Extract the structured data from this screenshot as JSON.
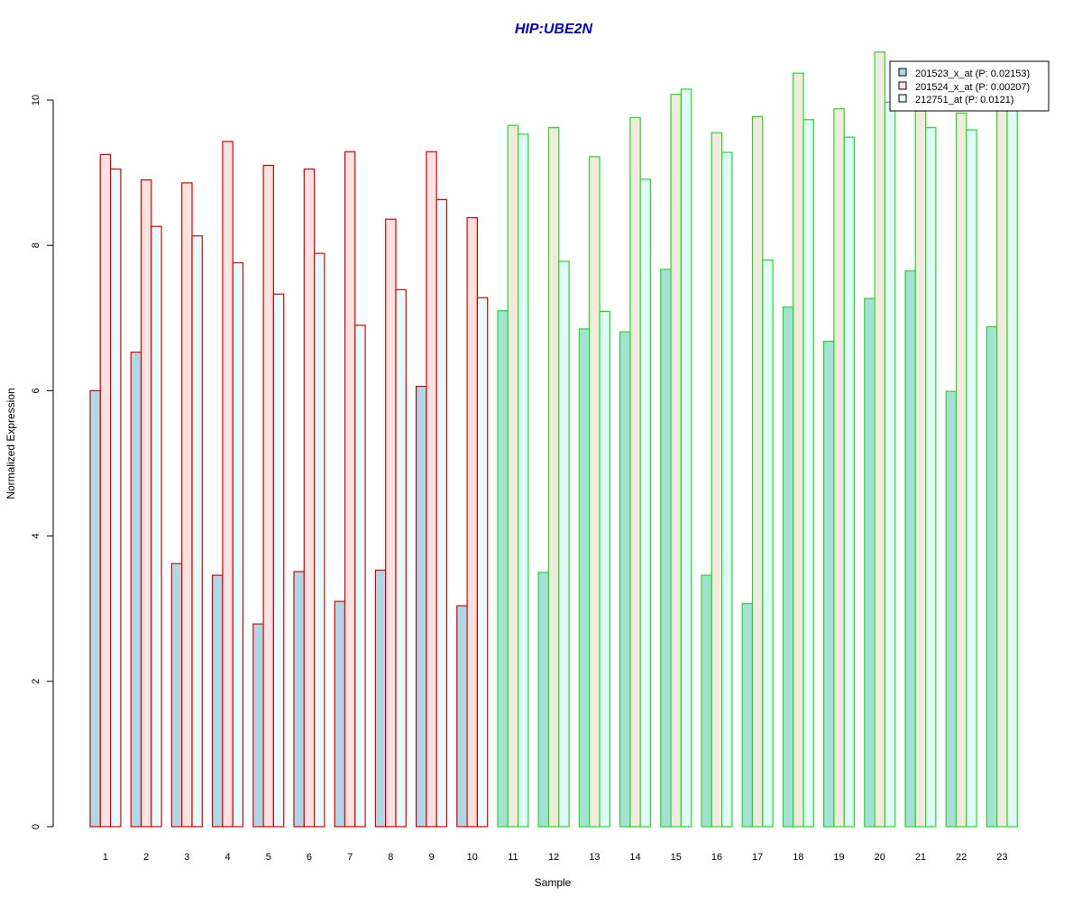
{
  "chart_data": {
    "type": "bar",
    "title": "HIP:UBE2N",
    "title_color": "#0000CC",
    "xlabel": "Sample",
    "ylabel": "Normalized Expression",
    "ylim": [
      0,
      10.6
    ],
    "yticks": [
      0,
      2,
      4,
      6,
      8,
      10
    ],
    "grid": false,
    "legend_position": "top-right",
    "categories": [
      "1",
      "2",
      "3",
      "4",
      "5",
      "6",
      "7",
      "8",
      "9",
      "10",
      "11",
      "12",
      "13",
      "14",
      "15",
      "16",
      "17",
      "18",
      "19",
      "20",
      "21",
      "22",
      "23"
    ],
    "group_border_colors": [
      "#E00000",
      "#E00000",
      "#E00000",
      "#E00000",
      "#E00000",
      "#E00000",
      "#E00000",
      "#E00000",
      "#E00000",
      "#E00000",
      "#22DD22",
      "#22DD22",
      "#22DD22",
      "#22DD22",
      "#22DD22",
      "#22DD22",
      "#22DD22",
      "#22DD22",
      "#22DD22",
      "#22DD22",
      "#22DD22",
      "#22DD22",
      "#22DD22"
    ],
    "series": [
      {
        "name": "201523_x_at (P: 0.02153)",
        "fill_red_group": "#ADD8E6",
        "fill_green_group": "#A3E0D6",
        "values": [
          6.0,
          6.53,
          3.62,
          3.46,
          2.79,
          3.51,
          3.1,
          3.53,
          6.06,
          3.04,
          7.1,
          3.5,
          6.85,
          6.81,
          7.67,
          3.46,
          3.07,
          7.15,
          6.68,
          7.27,
          7.65,
          5.99,
          6.88
        ]
      },
      {
        "name": "201524_x_at (P: 0.00207)",
        "fill_red_group": "#FFE2DF",
        "fill_green_group": "#F2EADC",
        "values": [
          9.25,
          8.9,
          8.86,
          9.43,
          9.1,
          9.05,
          9.29,
          8.36,
          9.29,
          8.38,
          9.65,
          9.62,
          9.22,
          9.76,
          10.08,
          9.55,
          9.77,
          10.37,
          9.88,
          10.66,
          9.85,
          9.82,
          9.9
        ]
      },
      {
        "name": "212751_at (P: 0.0121)",
        "fill_red_group": "#E6FCFC",
        "fill_green_group": "#E0FCF8",
        "values": [
          9.05,
          8.26,
          8.13,
          7.76,
          7.33,
          7.89,
          6.9,
          7.39,
          8.63,
          7.28,
          9.53,
          7.78,
          7.09,
          8.91,
          10.15,
          9.28,
          7.8,
          9.73,
          9.49,
          9.97,
          9.62,
          9.59,
          9.88
        ]
      }
    ]
  }
}
